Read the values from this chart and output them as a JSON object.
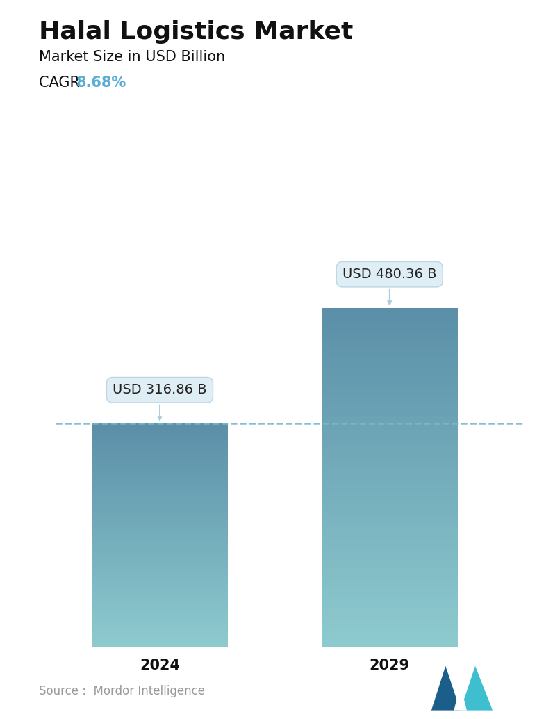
{
  "title": "Halal Logistics Market",
  "subtitle": "Market Size in USD Billion",
  "cagr_label": "CAGR ",
  "cagr_value": "8.68%",
  "cagr_color": "#5BADD4",
  "categories": [
    "2024",
    "2029"
  ],
  "values": [
    316.86,
    480.36
  ],
  "labels": [
    "USD 316.86 B",
    "USD 480.36 B"
  ],
  "bar_color_top": "#5B8FA8",
  "bar_color_bottom": "#8ECBCF",
  "dashed_line_color": "#7ab8cc",
  "source_text": "Source :  Mordor Intelligence",
  "source_color": "#999999",
  "background_color": "#ffffff",
  "title_fontsize": 26,
  "subtitle_fontsize": 15,
  "cagr_fontsize": 15,
  "tick_fontsize": 15,
  "label_fontsize": 14,
  "source_fontsize": 12,
  "ylim_max": 560,
  "x_positions": [
    1.0,
    3.2
  ],
  "bar_width": 1.3,
  "xlim": [
    0.0,
    4.5
  ]
}
